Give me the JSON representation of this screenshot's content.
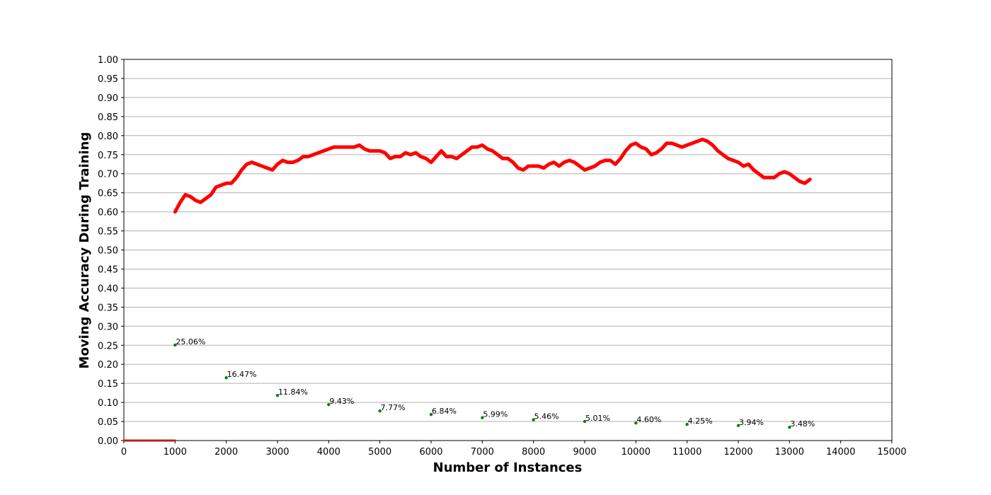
{
  "chart_data": {
    "type": "line",
    "xlabel": "Number of Instances",
    "ylabel": "Moving Accuracy During Training",
    "xlim": [
      0,
      15000
    ],
    "ylim": [
      0,
      1
    ],
    "xticks": [
      0,
      1000,
      2000,
      3000,
      4000,
      5000,
      6000,
      7000,
      8000,
      9000,
      10000,
      11000,
      12000,
      13000,
      14000,
      15000
    ],
    "yticks": [
      {
        "value": 0,
        "label": "0.00"
      },
      {
        "value": 0.05,
        "label": "0.05"
      },
      {
        "value": 0.1,
        "label": "0.10"
      },
      {
        "value": 0.15,
        "label": "0.15"
      },
      {
        "value": 0.2,
        "label": "0.20"
      },
      {
        "value": 0.25,
        "label": "0.25"
      },
      {
        "value": 0.3,
        "label": "0.30"
      },
      {
        "value": 0.35,
        "label": "0.35"
      },
      {
        "value": 0.4,
        "label": "0.40"
      },
      {
        "value": 0.45,
        "label": "0.45"
      },
      {
        "value": 0.5,
        "label": "0.50"
      },
      {
        "value": 0.55,
        "label": "0.55"
      },
      {
        "value": 0.6,
        "label": "0.60"
      },
      {
        "value": 0.65,
        "label": "0.65"
      },
      {
        "value": 0.7,
        "label": "0.70"
      },
      {
        "value": 0.75,
        "label": "0.75"
      },
      {
        "value": 0.8,
        "label": "0.80"
      },
      {
        "value": 0.85,
        "label": "0.85"
      },
      {
        "value": 0.9,
        "label": "0.90"
      },
      {
        "value": 0.95,
        "label": "0.95"
      },
      {
        "value": 1,
        "label": "1.00"
      }
    ],
    "grid": true,
    "series": [
      {
        "type": "line",
        "color": "#ff0000",
        "x": [
          1000,
          1100,
          1200,
          1300,
          1400,
          1500,
          1600,
          1700,
          1800,
          1900,
          2000,
          2100,
          2200,
          2300,
          2400,
          2500,
          2600,
          2700,
          2800,
          2900,
          3000,
          3100,
          3200,
          3300,
          3400,
          3500,
          3600,
          3700,
          3800,
          3900,
          4000,
          4100,
          4200,
          4300,
          4400,
          4500,
          4600,
          4700,
          4800,
          4900,
          5000,
          5100,
          5200,
          5300,
          5400,
          5500,
          5600,
          5700,
          5800,
          5900,
          6000,
          6100,
          6200,
          6300,
          6400,
          6500,
          6600,
          6700,
          6800,
          6900,
          7000,
          7100,
          7200,
          7300,
          7400,
          7500,
          7600,
          7700,
          7800,
          7900,
          8000,
          8100,
          8200,
          8300,
          8400,
          8500,
          8600,
          8700,
          8800,
          8900,
          9000,
          9100,
          9200,
          9300,
          9400,
          9500,
          9600,
          9700,
          9800,
          9900,
          10000,
          10100,
          10200,
          10300,
          10400,
          10500,
          10600,
          10700,
          10800,
          10900,
          11000,
          11100,
          11200,
          11300,
          11400,
          11500,
          11600,
          11700,
          11800,
          11900,
          12000,
          12100,
          12200,
          12300,
          12400,
          12500,
          12600,
          12700,
          12800,
          12900,
          13000,
          13100,
          13200,
          13300,
          13400
        ],
        "values": [
          0.6,
          0.625,
          0.645,
          0.64,
          0.63,
          0.625,
          0.635,
          0.645,
          0.665,
          0.67,
          0.675,
          0.675,
          0.69,
          0.71,
          0.725,
          0.73,
          0.725,
          0.72,
          0.715,
          0.71,
          0.725,
          0.735,
          0.73,
          0.73,
          0.735,
          0.745,
          0.745,
          0.75,
          0.755,
          0.76,
          0.765,
          0.77,
          0.77,
          0.77,
          0.77,
          0.77,
          0.775,
          0.765,
          0.76,
          0.76,
          0.76,
          0.755,
          0.74,
          0.745,
          0.745,
          0.755,
          0.75,
          0.755,
          0.745,
          0.74,
          0.73,
          0.745,
          0.76,
          0.745,
          0.745,
          0.74,
          0.75,
          0.76,
          0.77,
          0.77,
          0.775,
          0.765,
          0.76,
          0.75,
          0.74,
          0.74,
          0.73,
          0.715,
          0.71,
          0.72,
          0.72,
          0.72,
          0.715,
          0.725,
          0.73,
          0.72,
          0.73,
          0.735,
          0.73,
          0.72,
          0.71,
          0.715,
          0.72,
          0.73,
          0.735,
          0.735,
          0.725,
          0.74,
          0.76,
          0.775,
          0.78,
          0.77,
          0.765,
          0.75,
          0.755,
          0.765,
          0.78,
          0.78,
          0.775,
          0.77,
          0.775,
          0.78,
          0.785,
          0.79,
          0.785,
          0.775,
          0.76,
          0.75,
          0.74,
          0.735,
          0.73,
          0.72,
          0.725,
          0.71,
          0.7,
          0.69,
          0.69,
          0.69,
          0.7,
          0.705,
          0.7,
          0.69,
          0.68,
          0.675,
          0.685
        ]
      },
      {
        "type": "line",
        "color": "#b22222",
        "x": [
          0,
          1000
        ],
        "values": [
          0,
          0
        ]
      },
      {
        "type": "scatter",
        "color": "#008000",
        "x": [
          1000,
          2000,
          3000,
          4000,
          5000,
          6000,
          7000,
          8000,
          9000,
          10000,
          11000,
          12000,
          13000
        ],
        "values": [
          0.2506,
          0.1647,
          0.1184,
          0.0943,
          0.0777,
          0.0684,
          0.0599,
          0.0546,
          0.0501,
          0.046,
          0.0425,
          0.0394,
          0.0348
        ],
        "value_labels": [
          "25.06%",
          "16.47%",
          "11.84%",
          "9.43%",
          "7.77%",
          "6.84%",
          "5.99%",
          "5.46%",
          "5.01%",
          "4.60%",
          "4.25%",
          "3.94%",
          "3.48%"
        ]
      }
    ]
  }
}
